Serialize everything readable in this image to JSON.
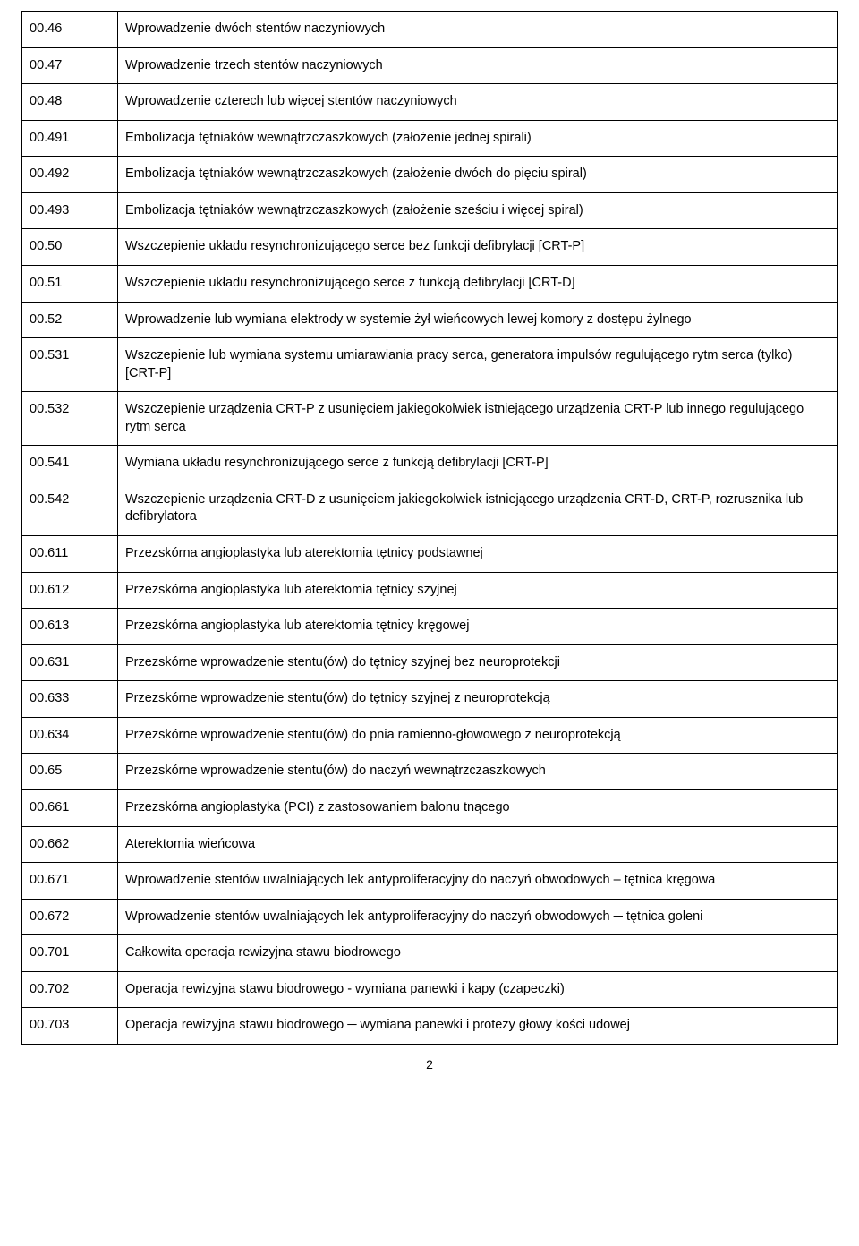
{
  "pageNumber": "2",
  "rows": [
    {
      "code": "00.46",
      "desc": "Wprowadzenie dwóch stentów naczyniowych"
    },
    {
      "code": "00.47",
      "desc": "Wprowadzenie trzech stentów naczyniowych"
    },
    {
      "code": "00.48",
      "desc": "Wprowadzenie czterech lub więcej stentów naczyniowych"
    },
    {
      "code": "00.491",
      "desc": "Embolizacja tętniaków wewnątrzczaszkowych (założenie jednej spirali)"
    },
    {
      "code": "00.492",
      "desc": "Embolizacja tętniaków wewnątrzczaszkowych (założenie dwóch do pięciu spiral)"
    },
    {
      "code": "00.493",
      "desc": "Embolizacja tętniaków wewnątrzczaszkowych (założenie sześciu i więcej spiral)"
    },
    {
      "code": "00.50",
      "desc": "Wszczepienie układu resynchronizującego serce bez funkcji defibrylacji [CRT-P]"
    },
    {
      "code": "00.51",
      "desc": "Wszczepienie układu resynchronizującego serce z funkcją defibrylacji [CRT-D]"
    },
    {
      "code": "00.52",
      "desc": "Wprowadzenie lub wymiana elektrody w systemie żył wieńcowych lewej komory z dostępu żylnego"
    },
    {
      "code": "00.531",
      "desc": "Wszczepienie lub wymiana systemu umiarawiania pracy serca, generatora impulsów regulującego rytm serca (tylko) [CRT-P]"
    },
    {
      "code": "00.532",
      "desc": "Wszczepienie urządzenia CRT-P z usunięciem jakiegokolwiek istniejącego urządzenia CRT-P lub innego regulującego rytm serca"
    },
    {
      "code": "00.541",
      "desc": "Wymiana układu resynchronizującego serce z funkcją defibrylacji [CRT-P]"
    },
    {
      "code": "00.542",
      "desc": "Wszczepienie urządzenia CRT-D z usunięciem jakiegokolwiek istniejącego urządzenia CRT-D, CRT-P, rozrusznika lub defibrylatora"
    },
    {
      "code": "00.611",
      "desc": " Przezskórna angioplastyka lub aterektomia tętnicy podstawnej"
    },
    {
      "code": "00.612",
      "desc": " Przezskórna angioplastyka lub aterektomia tętnicy szyjnej"
    },
    {
      "code": "00.613",
      "desc": " Przezskórna angioplastyka lub aterektomia tętnicy kręgowej"
    },
    {
      "code": "00.631",
      "desc": "Przezskórne wprowadzenie stentu(ów) do tętnicy szyjnej bez neuroprotekcji"
    },
    {
      "code": "00.633",
      "desc": "Przezskórne wprowadzenie stentu(ów) do tętnicy szyjnej z neuroprotekcją"
    },
    {
      "code": "00.634",
      "desc": "Przezskórne wprowadzenie stentu(ów) do pnia ramienno-głowowego z neuroprotekcją"
    },
    {
      "code": "00.65",
      "desc": "Przezskórne wprowadzenie stentu(ów) do naczyń wewnątrzczaszkowych"
    },
    {
      "code": "00.661",
      "desc": "Przezskórna angioplastyka (PCI) z zastosowaniem balonu tnącego"
    },
    {
      "code": "00.662",
      "desc": "Aterektomia wieńcowa"
    },
    {
      "code": "00.671",
      "desc": "Wprowadzenie stentów uwalniających lek antyproliferacyjny do naczyń obwodowych – tętnica kręgowa"
    },
    {
      "code": "00.672",
      "desc": "Wprowadzenie stentów uwalniających lek antyproliferacyjny do naczyń obwodowych ─ tętnica goleni"
    },
    {
      "code": "00.701",
      "desc": "Całkowita operacja rewizyjna stawu biodrowego"
    },
    {
      "code": "00.702",
      "desc": "Operacja rewizyjna stawu biodrowego - wymiana panewki i kapy (czapeczki)"
    },
    {
      "code": "00.703",
      "desc": "Operacja rewizyjna stawu biodrowego ─ wymiana panewki i protezy głowy kości udowej"
    }
  ]
}
